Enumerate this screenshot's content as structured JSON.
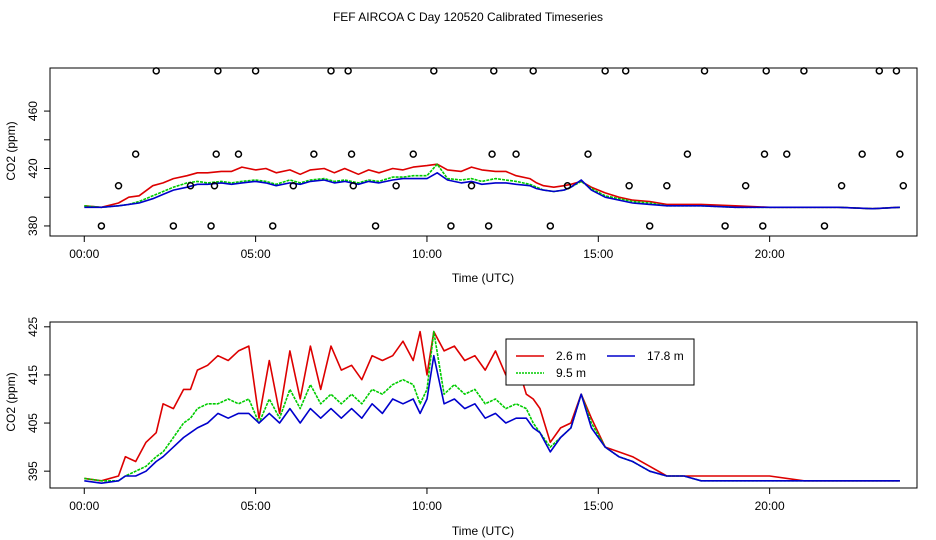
{
  "title": "FEF AIRCOA C  Day 120520  Calibrated Timeseries",
  "chart_data": [
    {
      "type": "line",
      "panel": "top",
      "xlabel": "Time (UTC)",
      "ylabel": "CO2 (ppm)",
      "xlim": [
        -1,
        24.3
      ],
      "ylim": [
        373,
        490
      ],
      "x_ticks": [
        0,
        5,
        10,
        15,
        20
      ],
      "x_tick_labels": [
        "00:00",
        "05:00",
        "10:00",
        "15:00",
        "20:00"
      ],
      "y_ticks": [
        380,
        400,
        420,
        440,
        460
      ],
      "y_tick_labels": [
        "380",
        "",
        "420",
        "",
        "460"
      ],
      "series": [
        {
          "name": "2.6 m",
          "color": "#dd0000",
          "x": [
            0,
            0.5,
            1,
            1.3,
            1.6,
            2,
            2.3,
            2.6,
            3,
            3.3,
            3.6,
            4,
            4.3,
            4.6,
            5,
            5.3,
            5.6,
            6,
            6.3,
            6.6,
            7,
            7.3,
            7.6,
            8,
            8.3,
            8.6,
            9,
            9.3,
            9.6,
            10,
            10.3,
            10.6,
            11,
            11.3,
            11.6,
            12,
            12.3,
            12.6,
            13,
            13.2,
            13.4,
            13.7,
            14,
            14.2,
            14.5,
            14.8,
            15.2,
            15.6,
            16,
            16.5,
            17,
            18,
            19,
            20,
            21,
            22,
            23,
            23.8
          ],
          "y": [
            394,
            393,
            396,
            400,
            401,
            408,
            410,
            413,
            415,
            417,
            417,
            418,
            418,
            421,
            419,
            420,
            417,
            419,
            416,
            419,
            420,
            417,
            420,
            416,
            419,
            417,
            420,
            419,
            421,
            422,
            423,
            419,
            418,
            421,
            419,
            418,
            418,
            415,
            413,
            410,
            408,
            407,
            408,
            409,
            411,
            407,
            403,
            400,
            398,
            397,
            395,
            395,
            394,
            393,
            393,
            393,
            392,
            393
          ]
        },
        {
          "name": "9.5 m",
          "color": "#00cc00",
          "x": [
            0,
            0.5,
            1,
            1.3,
            1.6,
            2,
            2.3,
            2.6,
            3,
            3.3,
            3.6,
            4,
            4.3,
            4.6,
            5,
            5.3,
            5.6,
            6,
            6.3,
            6.6,
            7,
            7.3,
            7.6,
            8,
            8.3,
            8.6,
            9,
            9.3,
            9.6,
            10,
            10.3,
            10.6,
            11,
            11.3,
            11.6,
            12,
            12.3,
            12.6,
            13,
            13.2,
            13.4,
            13.7,
            14,
            14.2,
            14.5,
            14.8,
            15.2,
            15.6,
            16,
            16.5,
            17,
            18,
            19,
            20,
            21,
            22,
            23,
            23.8
          ],
          "y": [
            394,
            393,
            394,
            395,
            397,
            401,
            404,
            407,
            410,
            411,
            410,
            411,
            410,
            411,
            412,
            411,
            409,
            412,
            410,
            412,
            413,
            411,
            412,
            410,
            412,
            411,
            414,
            414,
            415,
            415,
            423,
            413,
            412,
            413,
            411,
            413,
            412,
            411,
            409,
            407,
            405,
            404,
            405,
            407,
            411,
            406,
            401,
            399,
            397,
            396,
            394,
            394,
            393,
            393,
            393,
            393,
            392,
            393
          ]
        },
        {
          "name": "17.8 m",
          "color": "#0000cc",
          "x": [
            0,
            0.5,
            1,
            1.3,
            1.6,
            2,
            2.3,
            2.6,
            3,
            3.3,
            3.6,
            4,
            4.3,
            4.6,
            5,
            5.3,
            5.6,
            6,
            6.3,
            6.6,
            7,
            7.3,
            7.6,
            8,
            8.3,
            8.6,
            9,
            9.3,
            9.6,
            10,
            10.3,
            10.6,
            11,
            11.3,
            11.6,
            12,
            12.3,
            12.6,
            13,
            13.2,
            13.4,
            13.7,
            14,
            14.2,
            14.5,
            14.8,
            15.2,
            15.6,
            16,
            16.5,
            17,
            18,
            19,
            20,
            21,
            22,
            23,
            23.8
          ],
          "y": [
            393,
            393,
            394,
            395,
            396,
            399,
            402,
            405,
            407,
            409,
            409,
            410,
            409,
            410,
            411,
            410,
            408,
            410,
            409,
            411,
            412,
            410,
            411,
            409,
            411,
            410,
            412,
            413,
            413,
            413,
            417,
            412,
            410,
            411,
            409,
            410,
            410,
            409,
            408,
            406,
            405,
            404,
            405,
            407,
            412,
            405,
            400,
            398,
            396,
            395,
            394,
            394,
            393,
            393,
            393,
            393,
            392,
            393
          ]
        }
      ],
      "markers": {
        "type": "open-circle",
        "x": [
          0.5,
          1,
          1.5,
          2.1,
          2.6,
          3.1,
          3.7,
          3.8,
          3.85,
          3.9,
          4.5,
          5,
          5.5,
          6.1,
          6.7,
          7.2,
          7.7,
          7.8,
          7.85,
          8.5,
          9.1,
          9.6,
          10.2,
          10.7,
          11.3,
          11.8,
          11.9,
          11.95,
          12.6,
          13.1,
          13.6,
          14.1,
          14.7,
          15.2,
          15.8,
          15.9,
          16.5,
          17,
          17.6,
          18.1,
          18.7,
          19.3,
          19.8,
          19.85,
          19.9,
          20.5,
          21,
          21.6,
          22.1,
          22.7,
          23.2,
          23.7,
          23.8,
          23.9
        ],
        "y": [
          380,
          408,
          430,
          488,
          380,
          408,
          380,
          408,
          430,
          488,
          430,
          488,
          380,
          408,
          430,
          488,
          488,
          430,
          408,
          380,
          408,
          430,
          488,
          380,
          408,
          380,
          430,
          488,
          430,
          488,
          380,
          408,
          430,
          488,
          488,
          408,
          380,
          408,
          430,
          488,
          380,
          408,
          380,
          430,
          488,
          430,
          488,
          380,
          408,
          430,
          488,
          488,
          430,
          408
        ]
      }
    },
    {
      "type": "line",
      "panel": "bottom",
      "xlabel": "Time (UTC)",
      "ylabel": "CO2 (ppm)",
      "xlim": [
        -1,
        24.3
      ],
      "ylim": [
        391.5,
        426
      ],
      "x_ticks": [
        0,
        5,
        10,
        15,
        20
      ],
      "x_tick_labels": [
        "00:00",
        "05:00",
        "10:00",
        "15:00",
        "20:00"
      ],
      "y_ticks": [
        395,
        405,
        415,
        425
      ],
      "y_tick_labels": [
        "395",
        "405",
        "415",
        "425"
      ],
      "legend": {
        "position": "top-right",
        "entries": [
          "2.6 m",
          "9.5 m",
          "17.8 m"
        ]
      },
      "series": [
        {
          "name": "2.6 m",
          "color": "#dd0000",
          "x": [
            0,
            0.5,
            1,
            1.2,
            1.5,
            1.8,
            2.1,
            2.3,
            2.6,
            2.9,
            3.1,
            3.3,
            3.6,
            3.9,
            4.2,
            4.5,
            4.8,
            5.1,
            5.4,
            5.7,
            6.0,
            6.3,
            6.6,
            6.9,
            7.2,
            7.5,
            7.8,
            8.1,
            8.4,
            8.7,
            9.0,
            9.3,
            9.6,
            9.8,
            10.0,
            10.2,
            10.5,
            10.8,
            11.1,
            11.4,
            11.7,
            12.0,
            12.3,
            12.6,
            12.9,
            13.1,
            13.3,
            13.6,
            13.9,
            14.2,
            14.5,
            14.8,
            15.2,
            15.6,
            16.0,
            16.5,
            17.0,
            17.5,
            18,
            19,
            20,
            21,
            22,
            23,
            23.8
          ],
          "y": [
            393.5,
            393,
            394,
            398,
            397,
            401,
            403,
            409,
            408,
            412,
            412,
            416,
            417,
            419,
            418,
            420,
            421,
            406,
            418,
            407,
            420,
            410,
            421,
            412,
            421,
            416,
            417,
            414,
            419,
            418,
            419,
            422,
            418,
            424,
            415,
            424,
            420,
            421,
            418,
            419,
            416,
            420,
            415,
            418,
            411,
            410,
            408,
            401,
            404,
            405,
            411,
            406,
            400,
            399,
            398,
            396,
            394,
            394,
            394,
            394,
            394,
            393,
            393,
            393,
            393
          ]
        },
        {
          "name": "9.5 m",
          "color": "#00cc00",
          "x": [
            0,
            0.5,
            1,
            1.2,
            1.5,
            1.8,
            2.1,
            2.3,
            2.6,
            2.9,
            3.1,
            3.3,
            3.6,
            3.9,
            4.2,
            4.5,
            4.8,
            5.1,
            5.4,
            5.7,
            6.0,
            6.3,
            6.6,
            6.9,
            7.2,
            7.5,
            7.8,
            8.1,
            8.4,
            8.7,
            9.0,
            9.3,
            9.6,
            9.8,
            10.0,
            10.2,
            10.5,
            10.8,
            11.1,
            11.4,
            11.7,
            12.0,
            12.3,
            12.6,
            12.9,
            13.1,
            13.3,
            13.6,
            13.9,
            14.2,
            14.5,
            14.8,
            15.2,
            15.6,
            16.0,
            16.5,
            17.0,
            17.5,
            18,
            19,
            20,
            21,
            22,
            23,
            23.8
          ],
          "y": [
            393.5,
            393,
            393,
            394,
            395,
            396,
            398,
            399,
            402,
            405,
            406,
            408,
            409,
            409,
            410,
            409,
            410,
            405,
            410,
            406,
            412,
            408,
            413,
            409,
            411,
            409,
            411,
            409,
            412,
            411,
            413,
            414,
            413,
            409,
            412,
            424,
            411,
            413,
            411,
            412,
            409,
            410,
            408,
            409,
            408,
            405,
            403,
            400,
            402,
            404,
            411,
            405,
            400,
            398,
            397,
            395,
            394,
            394,
            393,
            393,
            393,
            393,
            393,
            393,
            393
          ]
        },
        {
          "name": "17.8 m",
          "color": "#0000cc",
          "x": [
            0,
            0.5,
            1,
            1.2,
            1.5,
            1.8,
            2.1,
            2.3,
            2.6,
            2.9,
            3.1,
            3.3,
            3.6,
            3.9,
            4.2,
            4.5,
            4.8,
            5.1,
            5.4,
            5.7,
            6.0,
            6.3,
            6.6,
            6.9,
            7.2,
            7.5,
            7.8,
            8.1,
            8.4,
            8.7,
            9.0,
            9.3,
            9.6,
            9.8,
            10.0,
            10.2,
            10.5,
            10.8,
            11.1,
            11.4,
            11.7,
            12.0,
            12.3,
            12.6,
            12.9,
            13.1,
            13.3,
            13.6,
            13.9,
            14.2,
            14.5,
            14.8,
            15.2,
            15.6,
            16.0,
            16.5,
            17.0,
            17.5,
            18,
            19,
            20,
            21,
            22,
            23,
            23.8
          ],
          "y": [
            393,
            392.5,
            393,
            394,
            394,
            395,
            397,
            398,
            400,
            402,
            403,
            404,
            405,
            407,
            406,
            407,
            407,
            405,
            407,
            405,
            408,
            405,
            408,
            406,
            408,
            406,
            408,
            406,
            409,
            407,
            410,
            409,
            410,
            407,
            410,
            419,
            409,
            410,
            408,
            409,
            406,
            407,
            405,
            406,
            406,
            404,
            403,
            399,
            402,
            404,
            411,
            404,
            400,
            398,
            397,
            395,
            394,
            394,
            393,
            393,
            393,
            393,
            393,
            393,
            393
          ]
        }
      ]
    }
  ]
}
